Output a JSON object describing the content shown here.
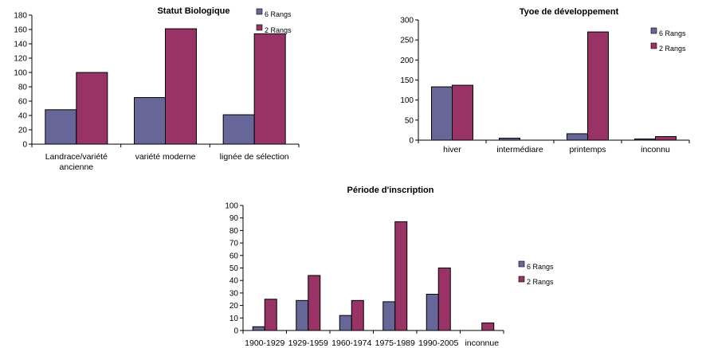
{
  "colors": {
    "series_6": "#666699",
    "series_2": "#993366"
  },
  "chart_data": [
    {
      "type": "bar",
      "title": "Statut Biologique",
      "categories": [
        "Landrace/variété ancienne",
        "variété moderne",
        "lignée de sélection"
      ],
      "series": [
        {
          "name": "6 Rangs",
          "values": [
            48,
            65,
            41
          ]
        },
        {
          "name": "2 Rangs",
          "values": [
            100,
            161,
            154
          ]
        }
      ],
      "ylim": [
        0,
        180
      ],
      "yticks": [
        0,
        20,
        40,
        60,
        80,
        100,
        120,
        140,
        160,
        180
      ],
      "legend": "top-right"
    },
    {
      "type": "bar",
      "title": "Tyoe de développement",
      "categories": [
        "hiver",
        "intermédiare",
        "printemps",
        "inconnu"
      ],
      "series": [
        {
          "name": "6 Rangs",
          "values": [
            133,
            5,
            16,
            3
          ]
        },
        {
          "name": "2 Rangs",
          "values": [
            137,
            0,
            270,
            9
          ]
        }
      ],
      "ylim": [
        0,
        300
      ],
      "yticks": [
        0,
        50,
        100,
        150,
        200,
        250,
        300
      ],
      "legend": "top-right"
    },
    {
      "type": "bar",
      "title": "Période d'inscription",
      "categories": [
        "1900-1929",
        "1929-1959",
        "1960-1974",
        "1975-1989",
        "1990-2005",
        "inconnue"
      ],
      "series": [
        {
          "name": "6 Rangs",
          "values": [
            3,
            24,
            12,
            23,
            29,
            0
          ]
        },
        {
          "name": "2 Rangs",
          "values": [
            25,
            44,
            24,
            87,
            50,
            6
          ]
        }
      ],
      "ylim": [
        0,
        100
      ],
      "yticks": [
        0,
        10,
        20,
        30,
        40,
        50,
        60,
        70,
        80,
        90,
        100
      ],
      "legend": "right"
    }
  ]
}
